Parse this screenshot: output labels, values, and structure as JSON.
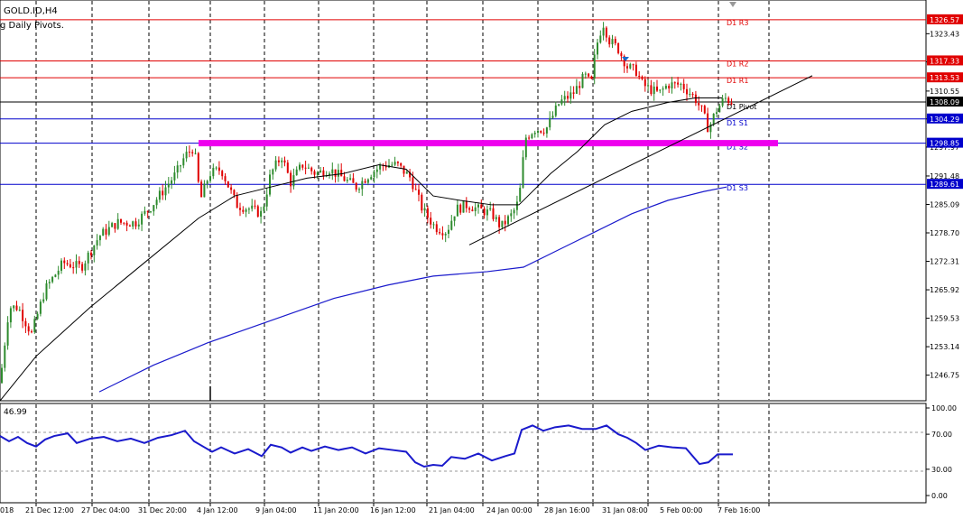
{
  "header": {
    "symbol": "GOLD.ID,H4",
    "indicator": "g Daily Pivots."
  },
  "price_axis": {
    "ticks": [
      "1323.43",
      "1317.11",
      "1310.55",
      "1304.29",
      "1297.97",
      "1291.48",
      "1285.09",
      "1278.70",
      "1272.31",
      "1265.92",
      "1259.53",
      "1253.14",
      "1246.75"
    ]
  },
  "levels": [
    {
      "name": "D1 R3",
      "price": 1326.57,
      "label": "1326.57",
      "color": "#e00000",
      "text_color": "#e00000"
    },
    {
      "name": "D1 R2",
      "price": 1317.33,
      "label": "1317.33",
      "color": "#e00000",
      "text_color": "#e00000"
    },
    {
      "name": "D1 R1",
      "price": 1313.53,
      "label": "1313.53",
      "color": "#e00000",
      "text_color": "#e00000"
    },
    {
      "name": "D1 Pivot",
      "price": 1308.09,
      "label": "1308.09",
      "color": "#000000",
      "text_color": "#000000"
    },
    {
      "name": "D1 S1",
      "price": 1304.29,
      "label": "1304.29",
      "color": "#0000cc",
      "text_color": "#0000cc"
    },
    {
      "name": "D1 S2",
      "price": 1298.85,
      "label": "1298.85",
      "color": "#0000cc",
      "text_color": "#0000cc"
    },
    {
      "name": "D1 S3",
      "price": 1289.61,
      "label": "1289.61",
      "color": "#0000cc",
      "text_color": "#0000cc"
    }
  ],
  "oscillator": {
    "value_label": "46.99",
    "ticks": [
      "100.00",
      "70.00",
      "30.00",
      "0.00"
    ]
  },
  "time_axis": {
    "labels": [
      "018",
      "21 Dec 12:00",
      "27 Dec 04:00",
      "31 Dec 20:00",
      "4 Jan 12:00",
      "9 Jan 04:00",
      "11 Jan 20:00",
      "16 Jan 12:00",
      "21 Jan 04:00",
      "24 Jan 00:00",
      "28 Jan 16:00",
      "31 Jan 08:00",
      "5 Feb 00:00",
      "7 Feb 16:00"
    ]
  },
  "colors": {
    "bull": "#2e8b2e",
    "bear": "#e00000",
    "ma_fast": "#000000",
    "ma_slow": "#1a1acc",
    "oscillator": "#1a1acc",
    "support_zone": "#ee00ee",
    "current_price_bg": "#000000"
  },
  "chart_data": {
    "type": "candlestick",
    "symbol": "GOLD.ID",
    "timeframe": "H4",
    "y_range": [
      1241,
      1331
    ],
    "close_path": [
      [
        0,
        1245
      ],
      [
        10,
        1262
      ],
      [
        20,
        1262
      ],
      [
        35,
        1256
      ],
      [
        50,
        1266
      ],
      [
        70,
        1272
      ],
      [
        90,
        1271
      ],
      [
        110,
        1278
      ],
      [
        130,
        1281
      ],
      [
        150,
        1281
      ],
      [
        165,
        1284
      ],
      [
        180,
        1288
      ],
      [
        195,
        1292
      ],
      [
        205,
        1296
      ],
      [
        215,
        1298
      ],
      [
        222,
        1286
      ],
      [
        232,
        1292
      ],
      [
        245,
        1293
      ],
      [
        262,
        1285
      ],
      [
        278,
        1284
      ],
      [
        290,
        1283
      ],
      [
        300,
        1292
      ],
      [
        312,
        1296
      ],
      [
        322,
        1290
      ],
      [
        335,
        1294
      ],
      [
        350,
        1292
      ],
      [
        365,
        1293
      ],
      [
        380,
        1291
      ],
      [
        395,
        1289
      ],
      [
        410,
        1292
      ],
      [
        425,
        1294
      ],
      [
        440,
        1294
      ],
      [
        455,
        1291
      ],
      [
        468,
        1284
      ],
      [
        482,
        1280
      ],
      [
        495,
        1279
      ],
      [
        505,
        1284
      ],
      [
        518,
        1285
      ],
      [
        530,
        1284
      ],
      [
        545,
        1283
      ],
      [
        555,
        1280
      ],
      [
        568,
        1283
      ],
      [
        575,
        1286
      ],
      [
        582,
        1300
      ],
      [
        592,
        1302
      ],
      [
        605,
        1302
      ],
      [
        620,
        1308
      ],
      [
        635,
        1310
      ],
      [
        648,
        1314
      ],
      [
        655,
        1312
      ],
      [
        660,
        1320
      ],
      [
        668,
        1326
      ],
      [
        675,
        1322
      ],
      [
        685,
        1320
      ],
      [
        695,
        1316
      ],
      [
        705,
        1315
      ],
      [
        712,
        1312
      ],
      [
        720,
        1311
      ],
      [
        730,
        1310
      ],
      [
        740,
        1312
      ],
      [
        755,
        1312
      ],
      [
        770,
        1309
      ],
      [
        778,
        1306
      ],
      [
        785,
        1302
      ],
      [
        793,
        1306
      ],
      [
        803,
        1309
      ],
      [
        812,
        1308
      ]
    ],
    "ma_fast_path": [
      [
        0,
        1241
      ],
      [
        40,
        1251
      ],
      [
        100,
        1262
      ],
      [
        160,
        1272
      ],
      [
        220,
        1282
      ],
      [
        260,
        1287
      ],
      [
        300,
        1289
      ],
      [
        340,
        1291
      ],
      [
        380,
        1292
      ],
      [
        420,
        1294
      ],
      [
        450,
        1293
      ],
      [
        480,
        1287
      ],
      [
        510,
        1286
      ],
      [
        545,
        1285
      ],
      [
        575,
        1285
      ],
      [
        610,
        1292
      ],
      [
        640,
        1297
      ],
      [
        670,
        1303
      ],
      [
        700,
        1306
      ],
      [
        740,
        1308
      ],
      [
        770,
        1309
      ],
      [
        800,
        1309
      ]
    ],
    "ma_slow_path": [
      [
        110,
        1243
      ],
      [
        170,
        1249
      ],
      [
        230,
        1254
      ],
      [
        300,
        1259
      ],
      [
        370,
        1264
      ],
      [
        430,
        1267
      ],
      [
        480,
        1269
      ],
      [
        540,
        1270
      ],
      [
        580,
        1271
      ],
      [
        620,
        1275
      ],
      [
        660,
        1279
      ],
      [
        700,
        1283
      ],
      [
        740,
        1286
      ],
      [
        780,
        1288
      ],
      [
        805,
        1289
      ]
    ],
    "trendline_path": [
      [
        520,
        1276
      ],
      [
        900,
        1314
      ]
    ],
    "support_zone": {
      "price": 1298.85,
      "x_range": [
        220,
        862
      ]
    },
    "oscillator_path": [
      [
        0,
        68
      ],
      [
        10,
        62
      ],
      [
        20,
        67
      ],
      [
        30,
        60
      ],
      [
        40,
        56
      ],
      [
        50,
        64
      ],
      [
        60,
        68
      ],
      [
        75,
        71
      ],
      [
        85,
        60
      ],
      [
        100,
        65
      ],
      [
        115,
        67
      ],
      [
        130,
        62
      ],
      [
        145,
        65
      ],
      [
        160,
        60
      ],
      [
        175,
        66
      ],
      [
        190,
        69
      ],
      [
        205,
        74
      ],
      [
        215,
        62
      ],
      [
        225,
        56
      ],
      [
        235,
        50
      ],
      [
        245,
        55
      ],
      [
        260,
        48
      ],
      [
        275,
        53
      ],
      [
        290,
        45
      ],
      [
        300,
        58
      ],
      [
        312,
        55
      ],
      [
        322,
        49
      ],
      [
        335,
        55
      ],
      [
        345,
        51
      ],
      [
        360,
        56
      ],
      [
        375,
        52
      ],
      [
        390,
        55
      ],
      [
        405,
        48
      ],
      [
        420,
        54
      ],
      [
        435,
        52
      ],
      [
        450,
        50
      ],
      [
        460,
        38
      ],
      [
        470,
        33
      ],
      [
        480,
        35
      ],
      [
        490,
        34
      ],
      [
        500,
        44
      ],
      [
        515,
        42
      ],
      [
        530,
        48
      ],
      [
        545,
        40
      ],
      [
        560,
        45
      ],
      [
        570,
        48
      ],
      [
        578,
        75
      ],
      [
        590,
        80
      ],
      [
        602,
        74
      ],
      [
        615,
        78
      ],
      [
        630,
        80
      ],
      [
        645,
        76
      ],
      [
        660,
        76
      ],
      [
        672,
        80
      ],
      [
        685,
        70
      ],
      [
        695,
        66
      ],
      [
        705,
        60
      ],
      [
        715,
        52
      ],
      [
        730,
        57
      ],
      [
        745,
        55
      ],
      [
        760,
        54
      ],
      [
        775,
        36
      ],
      [
        785,
        38
      ],
      [
        795,
        47
      ],
      [
        812,
        47
      ]
    ]
  }
}
